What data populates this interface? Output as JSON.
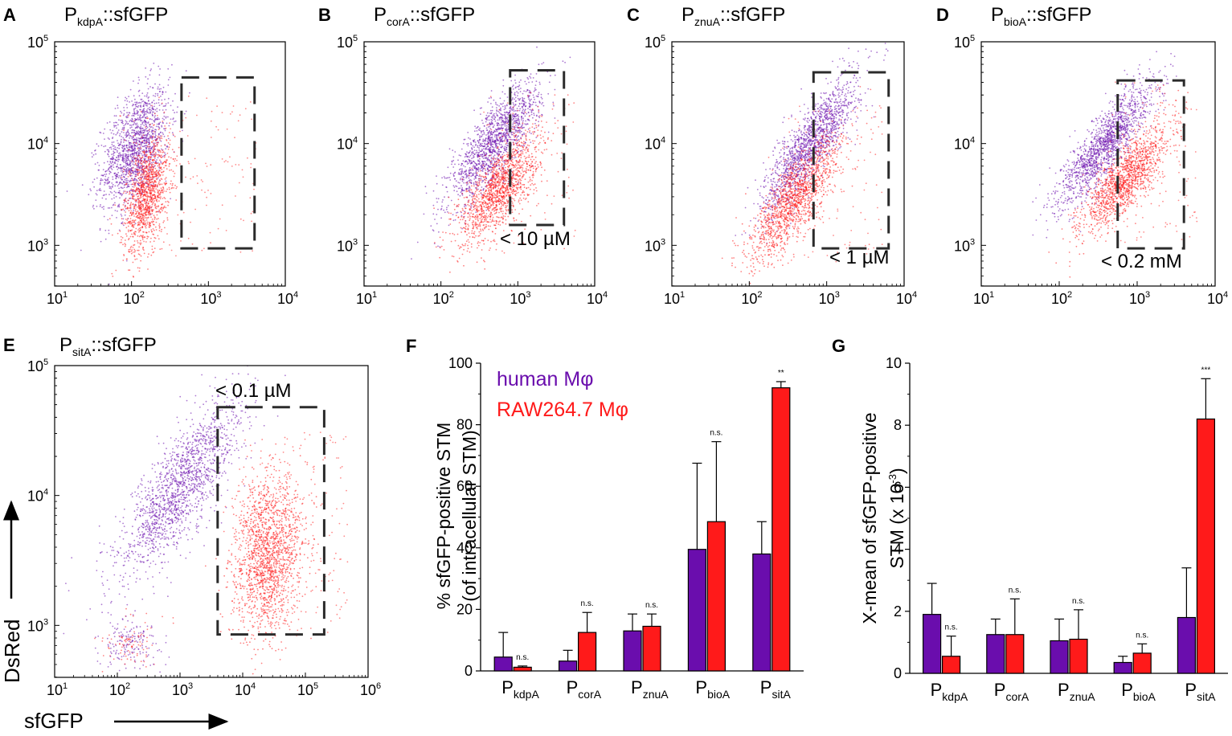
{
  "colors": {
    "human": "#6a0dad",
    "raw": "#ff1a1a",
    "gate": "#2b2b2b",
    "axis": "#000000"
  },
  "scatter_panels": [
    {
      "letter": "A",
      "prom_prefix": "P",
      "prom_sub": "kdpA",
      "prom_suffix": "::sfGFP",
      "gate_label": "",
      "xlim_log10": [
        1,
        4
      ],
      "ylim_log10": [
        2.6,
        5
      ],
      "x_ticks": [
        {
          "base": "10",
          "exp": "1"
        },
        {
          "base": "10",
          "exp": "2"
        },
        {
          "base": "10",
          "exp": "3"
        },
        {
          "base": "10",
          "exp": "4"
        }
      ],
      "y_ticks": [
        {
          "base": "10",
          "exp": "3"
        },
        {
          "base": "10",
          "exp": "4"
        },
        {
          "base": "10",
          "exp": "5"
        }
      ],
      "gate_log10": {
        "x": [
          2.65,
          3.6
        ],
        "y": [
          2.97,
          4.65
        ]
      },
      "human_cloud": {
        "cx": 2.05,
        "cy": 3.95,
        "sx": 0.22,
        "sy": 0.3,
        "rho": 0.45,
        "n": 1500
      },
      "raw_cloud": {
        "cx": 2.2,
        "cy": 3.5,
        "sx": 0.15,
        "sy": 0.28,
        "rho": 0.4,
        "n": 1200,
        "spread_n": 150
      }
    },
    {
      "letter": "B",
      "prom_prefix": "P",
      "prom_sub": "corA",
      "prom_suffix": "::sfGFP",
      "gate_label": "< 10 µM",
      "xlim_log10": [
        1,
        4
      ],
      "ylim_log10": [
        2.6,
        5
      ],
      "x_ticks": [
        {
          "base": "10",
          "exp": "1"
        },
        {
          "base": "10",
          "exp": "2"
        },
        {
          "base": "10",
          "exp": "3"
        },
        {
          "base": "10",
          "exp": "4"
        }
      ],
      "y_ticks": [
        {
          "base": "10",
          "exp": "3"
        },
        {
          "base": "10",
          "exp": "4"
        },
        {
          "base": "10",
          "exp": "5"
        }
      ],
      "gate_log10": {
        "x": [
          2.9,
          3.6
        ],
        "y": [
          3.2,
          4.72
        ]
      },
      "human_cloud": {
        "cx": 2.7,
        "cy": 4.0,
        "sx": 0.3,
        "sy": 0.3,
        "rho": 0.8,
        "n": 1500
      },
      "raw_cloud": {
        "cx": 2.75,
        "cy": 3.55,
        "sx": 0.26,
        "sy": 0.26,
        "rho": 0.7,
        "n": 1400,
        "spread_n": 120
      }
    },
    {
      "letter": "C",
      "prom_prefix": "P",
      "prom_sub": "znuA",
      "prom_suffix": "::sfGFP",
      "gate_label": "< 1 µM",
      "xlim_log10": [
        1,
        4
      ],
      "ylim_log10": [
        2.6,
        5
      ],
      "x_ticks": [
        {
          "base": "10",
          "exp": "1"
        },
        {
          "base": "10",
          "exp": "2"
        },
        {
          "base": "10",
          "exp": "3"
        },
        {
          "base": "10",
          "exp": "4"
        }
      ],
      "y_ticks": [
        {
          "base": "10",
          "exp": "3"
        },
        {
          "base": "10",
          "exp": "4"
        },
        {
          "base": "10",
          "exp": "5"
        }
      ],
      "gate_log10": {
        "x": [
          2.83,
          3.8
        ],
        "y": [
          2.97,
          4.7
        ]
      },
      "human_cloud": {
        "cx": 2.8,
        "cy": 4.0,
        "sx": 0.3,
        "sy": 0.33,
        "rho": 0.85,
        "n": 1500
      },
      "raw_cloud": {
        "cx": 2.6,
        "cy": 3.45,
        "sx": 0.3,
        "sy": 0.3,
        "rho": 0.8,
        "n": 1400,
        "spread_n": 120
      }
    },
    {
      "letter": "D",
      "prom_prefix": "P",
      "prom_sub": "bioA",
      "prom_suffix": "::sfGFP",
      "gate_label": "< 0.2 mM",
      "xlim_log10": [
        1,
        4
      ],
      "ylim_log10": [
        2.6,
        5
      ],
      "x_ticks": [
        {
          "base": "10",
          "exp": "1"
        },
        {
          "base": "10",
          "exp": "2"
        },
        {
          "base": "10",
          "exp": "3"
        },
        {
          "base": "10",
          "exp": "4"
        }
      ],
      "y_ticks": [
        {
          "base": "10",
          "exp": "3"
        },
        {
          "base": "10",
          "exp": "4"
        },
        {
          "base": "10",
          "exp": "5"
        }
      ],
      "gate_log10": {
        "x": [
          2.75,
          3.6
        ],
        "y": [
          2.97,
          4.62
        ]
      },
      "human_cloud": {
        "cx": 2.6,
        "cy": 4.0,
        "sx": 0.3,
        "sy": 0.3,
        "rho": 0.85,
        "n": 1500
      },
      "raw_cloud": {
        "cx": 2.85,
        "cy": 3.65,
        "sx": 0.28,
        "sy": 0.26,
        "rho": 0.8,
        "n": 1400,
        "spread_n": 120
      }
    },
    {
      "letter": "E",
      "prom_prefix": "P",
      "prom_sub": "sitA",
      "prom_suffix": "::sfGFP",
      "gate_label": "< 0.1 µM",
      "xlim_log10": [
        1,
        6
      ],
      "ylim_log10": [
        2.6,
        5
      ],
      "x_ticks": [
        {
          "base": "10",
          "exp": "1"
        },
        {
          "base": "10",
          "exp": "2"
        },
        {
          "base": "10",
          "exp": "3"
        },
        {
          "base": "10",
          "exp": "4"
        },
        {
          "base": "10",
          "exp": "5"
        },
        {
          "base": "10",
          "exp": "6"
        }
      ],
      "y_ticks": [
        {
          "base": "10",
          "exp": "3"
        },
        {
          "base": "10",
          "exp": "4"
        },
        {
          "base": "10",
          "exp": "5"
        }
      ],
      "gate_log10": {
        "x": [
          3.6,
          5.3
        ],
        "y": [
          2.93,
          4.68
        ]
      },
      "human_cloud": {
        "cx": 3.0,
        "cy": 4.05,
        "sx": 0.5,
        "sy": 0.35,
        "rho": 0.8,
        "n": 1600
      },
      "raw_cloud": {
        "cx": 4.4,
        "cy": 3.55,
        "sx": 0.28,
        "sy": 0.3,
        "rho": 0.2,
        "n": 1700,
        "spread_n": 200
      },
      "low_cluster": {
        "cx": 2.2,
        "cy": 2.85,
        "sx": 0.25,
        "sy": 0.1,
        "n": 250
      },
      "xlabel": "sfGFP",
      "ylabel": "DsRed"
    }
  ],
  "chart_data": [
    {
      "type": "bar",
      "letter": "F",
      "ylabel_line1": "% sfGFP-positive STM",
      "ylabel_line2": "(of intracellular STM)",
      "ylim": [
        0,
        100
      ],
      "y_ticks": [
        "0",
        "20",
        "40",
        "60",
        "80",
        "100"
      ],
      "categories": [
        {
          "p": "P",
          "sub": "kdpA"
        },
        {
          "p": "P",
          "sub": "corA"
        },
        {
          "p": "P",
          "sub": "znuA"
        },
        {
          "p": "P",
          "sub": "bioA"
        },
        {
          "p": "P",
          "sub": "sitA"
        }
      ],
      "legend": [
        "human Mφ",
        "RAW264.7 Mφ"
      ],
      "series": [
        {
          "name": "human Mφ",
          "values": [
            4.5,
            3.2,
            13.0,
            39.5,
            38.0
          ],
          "errors": [
            8.0,
            3.5,
            5.5,
            28.0,
            10.5
          ]
        },
        {
          "name": "RAW264.7 Mφ",
          "values": [
            1.2,
            12.5,
            14.5,
            48.5,
            92.0
          ],
          "errors": [
            0.4,
            6.5,
            4.0,
            26.0,
            2.0
          ]
        }
      ],
      "significance": [
        "n.s.",
        "n.s.",
        "n.s.",
        "n.s.",
        "**"
      ]
    },
    {
      "type": "bar",
      "letter": "G",
      "ylabel_line1": "X-mean of sfGFP-positive",
      "ylabel_line2_pre": "STM (x 10",
      "ylabel_line2_exp": "-3",
      "ylabel_line2_post": ")",
      "ylim": [
        0,
        10
      ],
      "y_ticks": [
        "0",
        "2",
        "4",
        "6",
        "8",
        "10"
      ],
      "categories": [
        {
          "p": "P",
          "sub": "kdpA"
        },
        {
          "p": "P",
          "sub": "corA"
        },
        {
          "p": "P",
          "sub": "znuA"
        },
        {
          "p": "P",
          "sub": "bioA"
        },
        {
          "p": "P",
          "sub": "sitA"
        }
      ],
      "series": [
        {
          "name": "human Mφ",
          "values": [
            1.9,
            1.25,
            1.05,
            0.35,
            1.8
          ],
          "errors": [
            1.0,
            0.5,
            0.7,
            0.2,
            1.6
          ]
        },
        {
          "name": "RAW264.7 Mφ",
          "values": [
            0.55,
            1.25,
            1.1,
            0.65,
            8.2
          ],
          "errors": [
            0.65,
            1.15,
            0.95,
            0.3,
            1.3
          ]
        }
      ],
      "significance": [
        "n.s.",
        "n.s.",
        "n.s.",
        "n.s.",
        "***"
      ]
    }
  ]
}
